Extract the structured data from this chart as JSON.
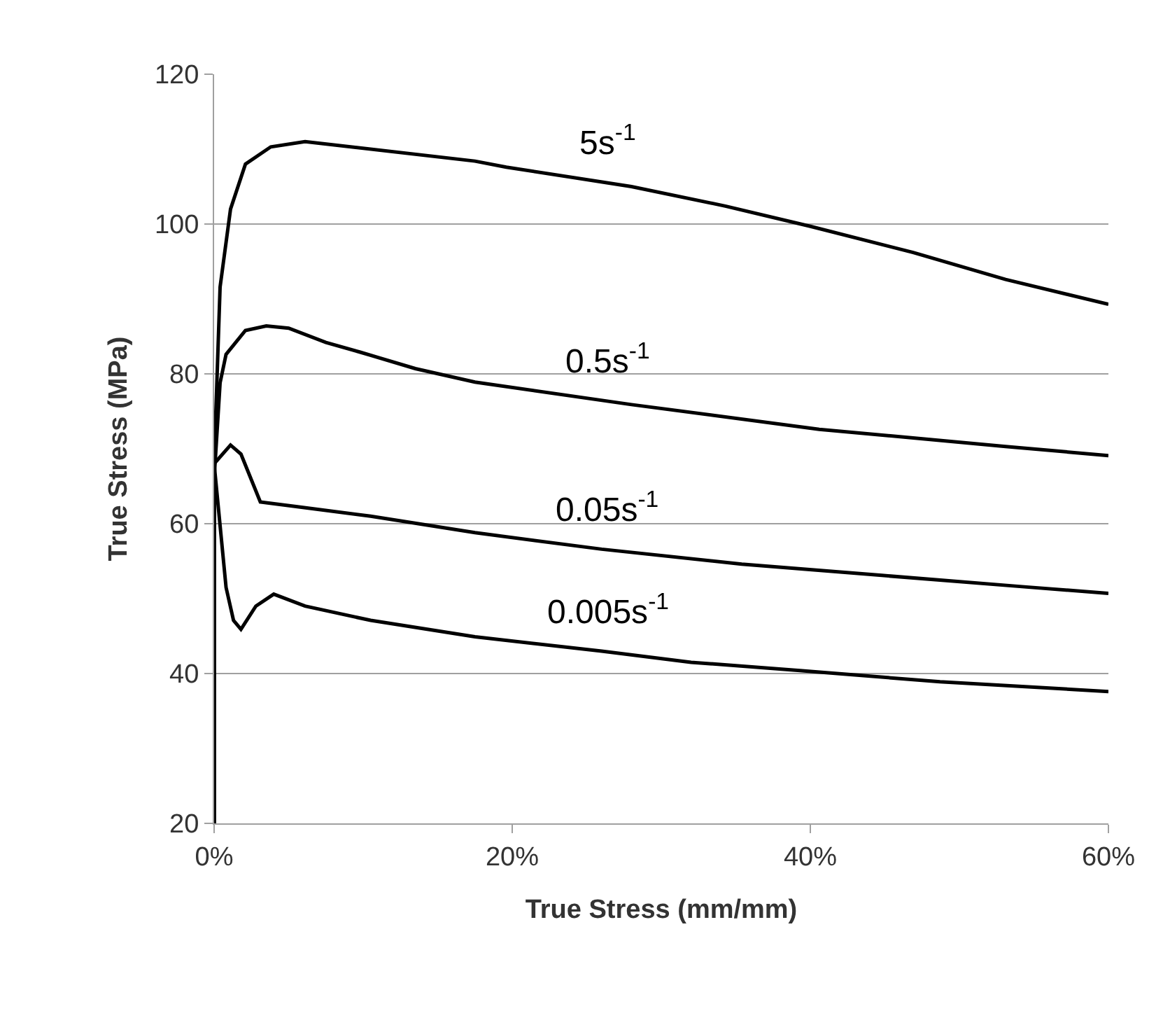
{
  "chart_data": {
    "type": "line",
    "xlabel": "True Stress (mm/mm)",
    "ylabel": "True Stress (MPa)",
    "xlim": [
      0,
      60
    ],
    "xticks": [
      {
        "value": 0,
        "label": "0%"
      },
      {
        "value": 20,
        "label": "20%"
      },
      {
        "value": 40,
        "label": "40%"
      },
      {
        "value": 60,
        "label": "60%"
      }
    ],
    "ylim": [
      20,
      120
    ],
    "yticks": [
      20,
      40,
      60,
      80,
      100,
      120
    ],
    "grid": "y",
    "legend": false,
    "marker": "none",
    "line_style": "solid",
    "series": [
      {
        "name": "5s$^{-1}$",
        "color": "#000000",
        "x": [
          0,
          0,
          0.4,
          1.1,
          2.1,
          3.8,
          6.1,
          17.5,
          19.6,
          28,
          34.3,
          40,
          46.9,
          53.1,
          60
        ],
        "values": [
          20,
          68,
          91.6,
          102,
          108,
          110.3,
          111,
          108.4,
          107.6,
          105,
          102.4,
          99.7,
          96.2,
          92.6,
          89.3
        ]
      },
      {
        "name": "0.5s$^{-1}$",
        "color": "#000000",
        "x": [
          0,
          0,
          0.4,
          0.8,
          2.1,
          3.5,
          5,
          7.5,
          9.8,
          13.5,
          17.5,
          28,
          40.6,
          53.1,
          60
        ],
        "values": [
          20,
          66,
          78.8,
          82.6,
          85.8,
          86.4,
          86.1,
          84.2,
          82.9,
          80.7,
          78.9,
          75.9,
          72.6,
          70.3,
          69.1
        ]
      },
      {
        "name": "0.05s$^{-1}$",
        "color": "#000000",
        "x": [
          0,
          0,
          1.1,
          1.8,
          3.1,
          5.5,
          10.5,
          17.5,
          26,
          35.4,
          44.8,
          54.2,
          60
        ],
        "values": [
          20,
          68,
          70.5,
          69.3,
          62.9,
          62.3,
          61,
          58.8,
          56.6,
          54.6,
          53.1,
          51.6,
          50.7
        ]
      },
      {
        "name": "0.005s$^{-1}$",
        "color": "#000000",
        "x": [
          0,
          0,
          0.8,
          1.3,
          1.8,
          2.8,
          4,
          6.1,
          10.5,
          17.5,
          26,
          32,
          39.3,
          48.7,
          60
        ],
        "values": [
          20,
          68,
          51.5,
          47.1,
          45.9,
          49,
          50.6,
          49,
          47.1,
          44.9,
          43,
          41.5,
          40.4,
          38.9,
          37.6
        ]
      }
    ]
  }
}
